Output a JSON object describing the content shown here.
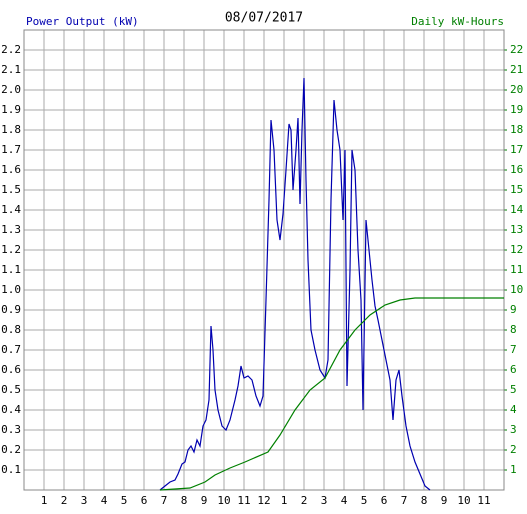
{
  "chart_data": {
    "type": "line",
    "title": "08/07/2017",
    "y_label": "Power Output (kW)",
    "y2_label": "Daily kW-Hours",
    "xlim": [
      0,
      24
    ],
    "xticks": [
      1,
      2,
      3,
      4,
      5,
      6,
      7,
      8,
      9,
      10,
      11,
      12,
      {
        "value": 13,
        "label": "1"
      },
      {
        "value": 14,
        "label": "2"
      },
      {
        "value": 15,
        "label": "3"
      },
      {
        "value": 16,
        "label": "4"
      },
      {
        "value": 17,
        "label": "5"
      },
      {
        "value": 18,
        "label": "6"
      },
      {
        "value": 19,
        "label": "7"
      },
      {
        "value": 20,
        "label": "8"
      },
      {
        "value": 21,
        "label": "9"
      },
      {
        "value": 22,
        "label": "10"
      },
      {
        "value": 23,
        "label": "11"
      }
    ],
    "ylim": [
      0,
      2.3
    ],
    "yticks": [
      0.1,
      0.2,
      0.3,
      0.4,
      0.5,
      0.6,
      0.7,
      0.8,
      0.9,
      {
        "value": 1,
        "label": "1.0"
      },
      1.1,
      1.2,
      1.3,
      1.4,
      1.5,
      1.6,
      1.7,
      1.8,
      1.9,
      {
        "value": 2,
        "label": "2.0"
      },
      2.1,
      2.2
    ],
    "y2lim": [
      0,
      23
    ],
    "y2ticks": [
      1,
      2,
      3,
      4,
      5,
      6,
      7,
      8,
      9,
      10,
      11,
      12,
      13,
      14,
      15,
      16,
      17,
      18,
      19,
      20,
      21,
      22
    ],
    "grid": true,
    "series": [
      {
        "name": "Power Output (kW)",
        "color": "#0000b0",
        "x": [
          6.8,
          7.05,
          7.3,
          7.55,
          7.7,
          7.9,
          8.05,
          8.2,
          8.35,
          8.5,
          8.65,
          8.8,
          8.95,
          9.1,
          9.25,
          9.35,
          9.45,
          9.55,
          9.7,
          9.9,
          10.1,
          10.3,
          10.55,
          10.7,
          10.85,
          11.0,
          11.2,
          11.4,
          11.6,
          11.8,
          11.95,
          12.1,
          12.25,
          12.35,
          12.5,
          12.65,
          12.8,
          12.95,
          13.1,
          13.25,
          13.35,
          13.45,
          13.6,
          13.7,
          13.8,
          13.9,
          14.0,
          14.1,
          14.2,
          14.35,
          14.55,
          14.8,
          15.05,
          15.2,
          15.35,
          15.5,
          15.65,
          15.8,
          15.95,
          16.05,
          16.15,
          16.3,
          16.4,
          16.55,
          16.7,
          16.85,
          16.95,
          17.1,
          17.25,
          17.4,
          17.55,
          17.7,
          17.9,
          18.1,
          18.3,
          18.45,
          18.6,
          18.75,
          18.9,
          19.1,
          19.3,
          19.55,
          19.8,
          20.05,
          20.3
        ],
        "values": [
          0,
          0.02,
          0.04,
          0.05,
          0.08,
          0.13,
          0.14,
          0.2,
          0.22,
          0.19,
          0.25,
          0.22,
          0.32,
          0.35,
          0.45,
          0.82,
          0.7,
          0.5,
          0.4,
          0.32,
          0.3,
          0.35,
          0.45,
          0.52,
          0.62,
          0.56,
          0.57,
          0.55,
          0.47,
          0.42,
          0.47,
          0.95,
          1.45,
          1.85,
          1.7,
          1.35,
          1.25,
          1.38,
          1.6,
          1.83,
          1.8,
          1.5,
          1.7,
          1.86,
          1.43,
          1.8,
          2.06,
          1.55,
          1.15,
          0.8,
          0.7,
          0.6,
          0.56,
          0.65,
          1.45,
          1.95,
          1.8,
          1.7,
          1.35,
          1.7,
          0.52,
          1.1,
          1.7,
          1.6,
          1.2,
          0.95,
          0.4,
          1.35,
          1.2,
          1.05,
          0.92,
          0.85,
          0.75,
          0.65,
          0.55,
          0.35,
          0.55,
          0.6,
          0.47,
          0.32,
          0.22,
          0.14,
          0.08,
          0.02,
          0
        ]
      },
      {
        "name": "Daily kW-Hours",
        "color": "#008000",
        "axis": "y2",
        "x": [
          6.8,
          8.3,
          9.05,
          9.55,
          10.3,
          11.05,
          12.2,
          12.8,
          13.55,
          14.3,
          15.05,
          15.8,
          16.55,
          17.3,
          18.05,
          18.8,
          19.55,
          20.8,
          24
        ],
        "values": [
          0,
          0.1,
          0.4,
          0.75,
          1.1,
          1.4,
          1.9,
          2.75,
          4,
          5,
          5.6,
          7,
          8,
          8.75,
          9.25,
          9.5,
          9.6,
          9.6,
          9.6
        ]
      }
    ]
  }
}
